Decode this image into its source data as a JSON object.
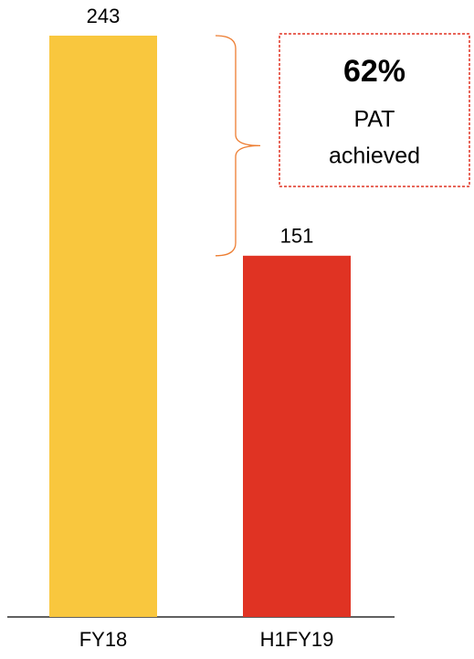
{
  "chart_data": {
    "type": "bar",
    "categories": [
      "FY18",
      "H1FY19"
    ],
    "values": [
      243,
      151
    ],
    "colors": [
      "#F9C73E",
      "#E03323"
    ],
    "annotation": {
      "headline": "62%",
      "lines": [
        "PAT",
        "achieved"
      ],
      "color": "#E03323",
      "brace_color": "#ED7D31"
    }
  }
}
